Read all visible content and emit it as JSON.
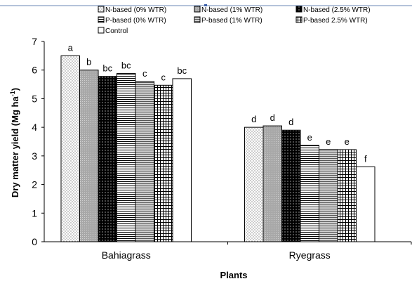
{
  "chart_data": {
    "type": "bar",
    "xlabel": "Plants",
    "ylabel": "Dry matter yield (Mg ha-1)",
    "ylim": [
      0,
      7
    ],
    "yticks": [
      0,
      1,
      2,
      3,
      4,
      5,
      6,
      7
    ],
    "grid": false,
    "legend_position": "top",
    "categories": [
      "Bahiagrass",
      "Ryegrass"
    ],
    "series": [
      {
        "name": "N-based (0% WTR)",
        "values": [
          6.5,
          4.0
        ],
        "letters": [
          "a",
          "d"
        ],
        "pattern": "dots"
      },
      {
        "name": "N-based (1% WTR)",
        "values": [
          6.0,
          4.05
        ],
        "letters": [
          "b",
          "d"
        ],
        "pattern": "gray"
      },
      {
        "name": "N-based (2.5% WTR)",
        "values": [
          5.78,
          3.9
        ],
        "letters": [
          "bc",
          "d"
        ],
        "pattern": "black-dots"
      },
      {
        "name": "P-based (0% WTR)",
        "values": [
          5.88,
          3.37
        ],
        "letters": [
          "bc",
          "e"
        ],
        "pattern": "hlines"
      },
      {
        "name": "P-based (1% WTR)",
        "values": [
          5.6,
          3.22
        ],
        "letters": [
          "c",
          "e"
        ],
        "pattern": "hlines-gray"
      },
      {
        "name": "P-based 2.5% WTR)",
        "values": [
          5.47,
          3.22
        ],
        "letters": [
          "c",
          "e"
        ],
        "pattern": "grid"
      },
      {
        "name": "Control",
        "values": [
          5.7,
          2.62
        ],
        "letters": [
          "bc",
          "f"
        ],
        "pattern": "white"
      }
    ]
  }
}
